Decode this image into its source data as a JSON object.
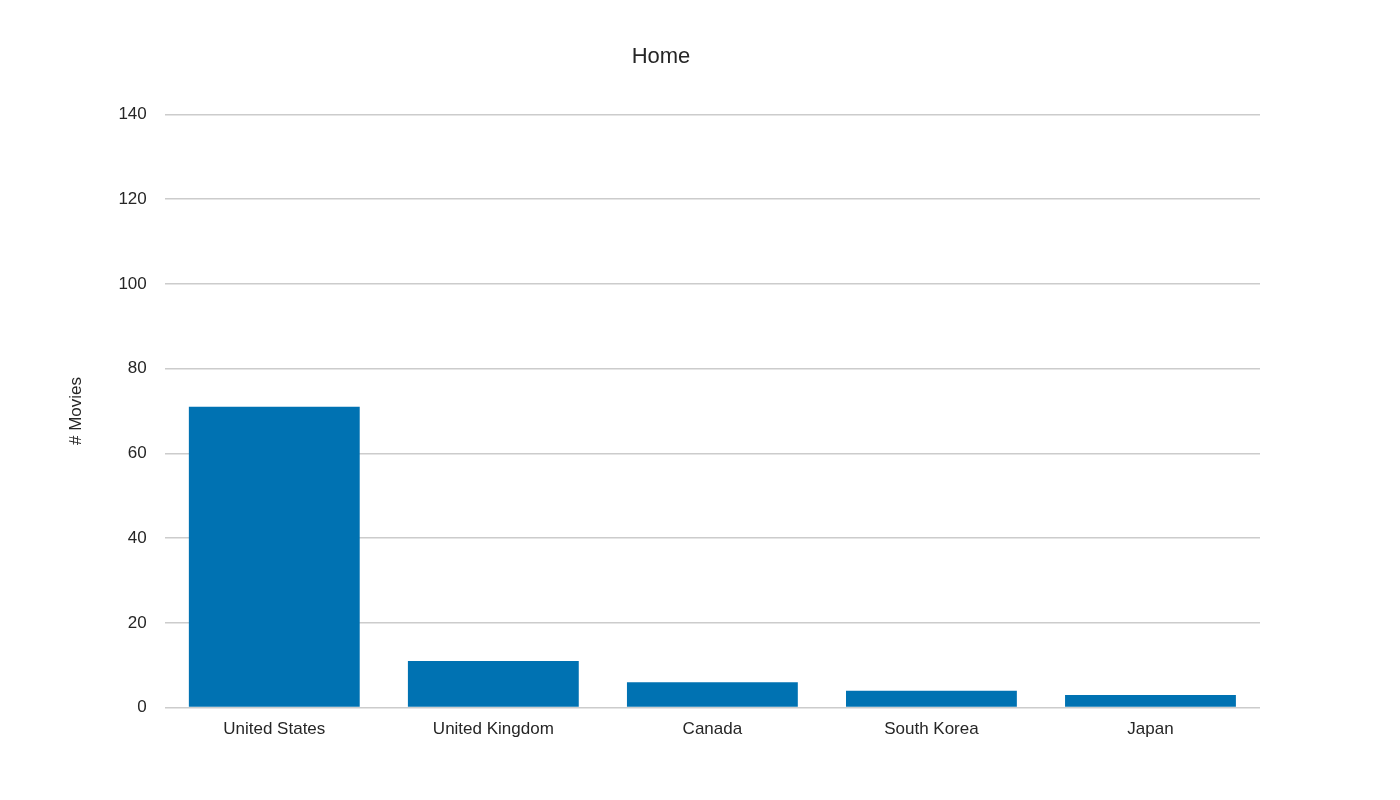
{
  "chart_data": {
    "type": "bar",
    "title": "Home",
    "y_label": "# Movies",
    "categories": [
      "United States",
      "United Kingdom",
      "Canada",
      "South Korea",
      "Japan"
    ],
    "values": [
      71,
      11,
      6,
      4,
      3
    ],
    "color": "#0072b2",
    "ylim": [
      0,
      140
    ],
    "yticks": [
      0,
      20,
      40,
      60,
      80,
      100,
      120,
      140
    ],
    "grid": true
  }
}
